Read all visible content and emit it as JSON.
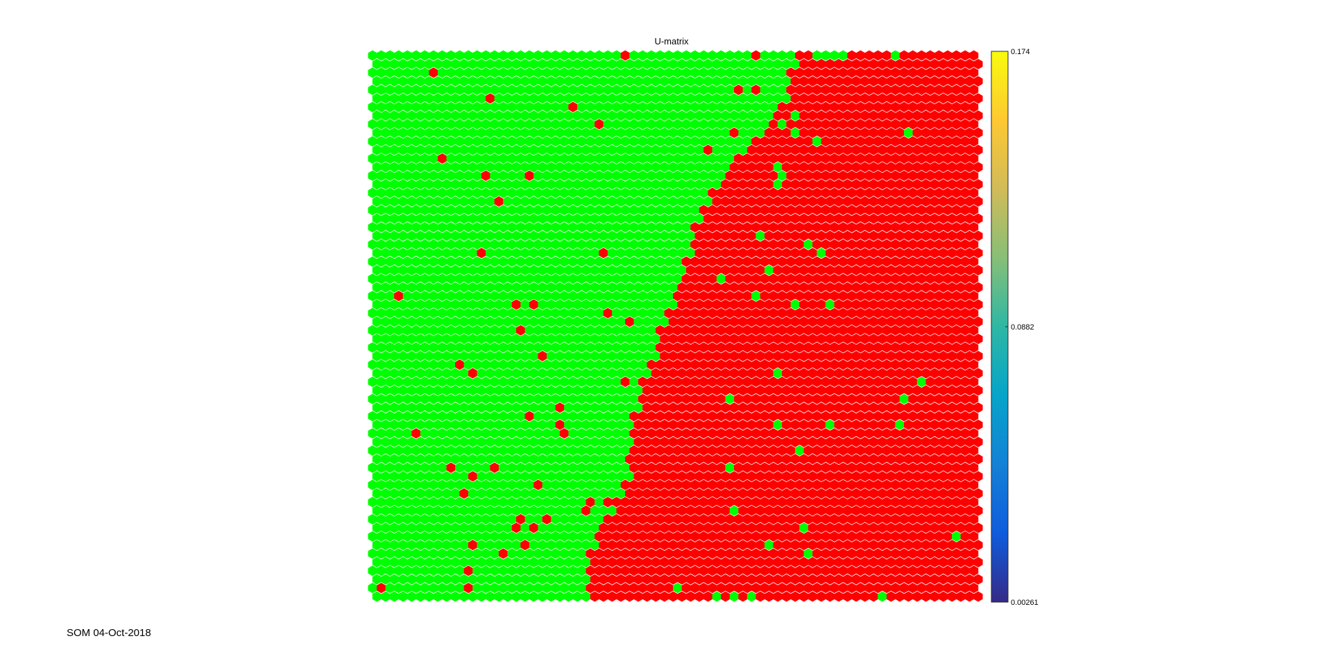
{
  "chart_data": {
    "type": "heatmap",
    "title": "U-matrix",
    "colorbar": {
      "ticks": [
        "0.174",
        "0.0882",
        "0.00261"
      ],
      "range": [
        0.00261,
        0.174
      ],
      "colors": [
        "#352a87",
        "#0f5cdd",
        "#1481d6",
        "#06a4ca",
        "#2eb7a4",
        "#87bf77",
        "#d1bb59",
        "#fec832",
        "#f9fb0e"
      ]
    },
    "grid": {
      "rows": 64,
      "cols": 70,
      "lattice": "hexa"
    },
    "classes": {
      "green": "#00ff00",
      "red": "#ff0000"
    },
    "boundary_col_by_row": [
      49,
      49,
      48,
      48,
      48,
      48,
      47,
      46,
      46,
      45,
      44,
      43,
      42,
      41,
      41,
      40,
      39,
      39,
      38,
      38,
      37,
      37,
      37,
      37,
      36,
      36,
      36,
      35,
      35,
      35,
      34,
      34,
      33,
      33,
      33,
      33,
      32,
      32,
      31,
      31,
      31,
      31,
      30,
      30,
      30,
      30,
      30,
      30,
      30,
      30,
      29,
      29,
      28,
      28,
      27,
      26,
      26,
      26,
      25,
      25,
      25,
      25,
      25,
      25
    ],
    "red_cells_in_green_region": [
      [
        0,
        29
      ],
      [
        0,
        44
      ],
      [
        2,
        7
      ],
      [
        4,
        42
      ],
      [
        4,
        44
      ],
      [
        5,
        13
      ],
      [
        6,
        23
      ],
      [
        8,
        26
      ],
      [
        9,
        41
      ],
      [
        12,
        8
      ],
      [
        11,
        38
      ],
      [
        14,
        13
      ],
      [
        14,
        18
      ],
      [
        17,
        14
      ],
      [
        23,
        12
      ],
      [
        23,
        26
      ],
      [
        28,
        3
      ],
      [
        29,
        18
      ],
      [
        29,
        16
      ],
      [
        30,
        27
      ],
      [
        31,
        29
      ],
      [
        32,
        17
      ],
      [
        35,
        19
      ],
      [
        36,
        10
      ],
      [
        37,
        11
      ],
      [
        38,
        29
      ],
      [
        41,
        21
      ],
      [
        42,
        18
      ],
      [
        43,
        21
      ],
      [
        44,
        5
      ],
      [
        44,
        22
      ],
      [
        47,
        29
      ],
      [
        48,
        9
      ],
      [
        48,
        14
      ],
      [
        49,
        11
      ],
      [
        50,
        19
      ],
      [
        52,
        25
      ],
      [
        51,
        10
      ],
      [
        53,
        24
      ],
      [
        52,
        27
      ],
      [
        54,
        17
      ],
      [
        54,
        20
      ],
      [
        55,
        16
      ],
      [
        55,
        18
      ],
      [
        57,
        11
      ],
      [
        57,
        17
      ],
      [
        58,
        15
      ],
      [
        60,
        11
      ],
      [
        60,
        29
      ],
      [
        61,
        26
      ],
      [
        62,
        1
      ],
      [
        62,
        11
      ],
      [
        63,
        28
      ]
    ],
    "green_cells_in_red_region": [
      [
        0,
        48
      ],
      [
        0,
        51
      ],
      [
        0,
        52
      ],
      [
        0,
        53
      ],
      [
        0,
        54
      ],
      [
        0,
        60
      ],
      [
        7,
        48
      ],
      [
        8,
        47
      ],
      [
        9,
        48
      ],
      [
        9,
        61
      ],
      [
        10,
        51
      ],
      [
        13,
        46
      ],
      [
        14,
        47
      ],
      [
        15,
        46
      ],
      [
        21,
        44
      ],
      [
        22,
        50
      ],
      [
        23,
        51
      ],
      [
        25,
        45
      ],
      [
        26,
        40
      ],
      [
        28,
        44
      ],
      [
        29,
        48
      ],
      [
        29,
        52
      ],
      [
        37,
        46
      ],
      [
        38,
        63
      ],
      [
        40,
        41
      ],
      [
        40,
        61
      ],
      [
        43,
        46
      ],
      [
        43,
        52
      ],
      [
        43,
        60
      ],
      [
        46,
        49
      ],
      [
        48,
        41
      ],
      [
        53,
        41
      ],
      [
        55,
        49
      ],
      [
        56,
        67
      ],
      [
        57,
        45
      ],
      [
        58,
        50
      ],
      [
        62,
        35
      ],
      [
        63,
        39
      ],
      [
        63,
        41
      ],
      [
        63,
        43
      ],
      [
        63,
        58
      ]
    ]
  },
  "footer_text": "SOM 04-Oct-2018"
}
